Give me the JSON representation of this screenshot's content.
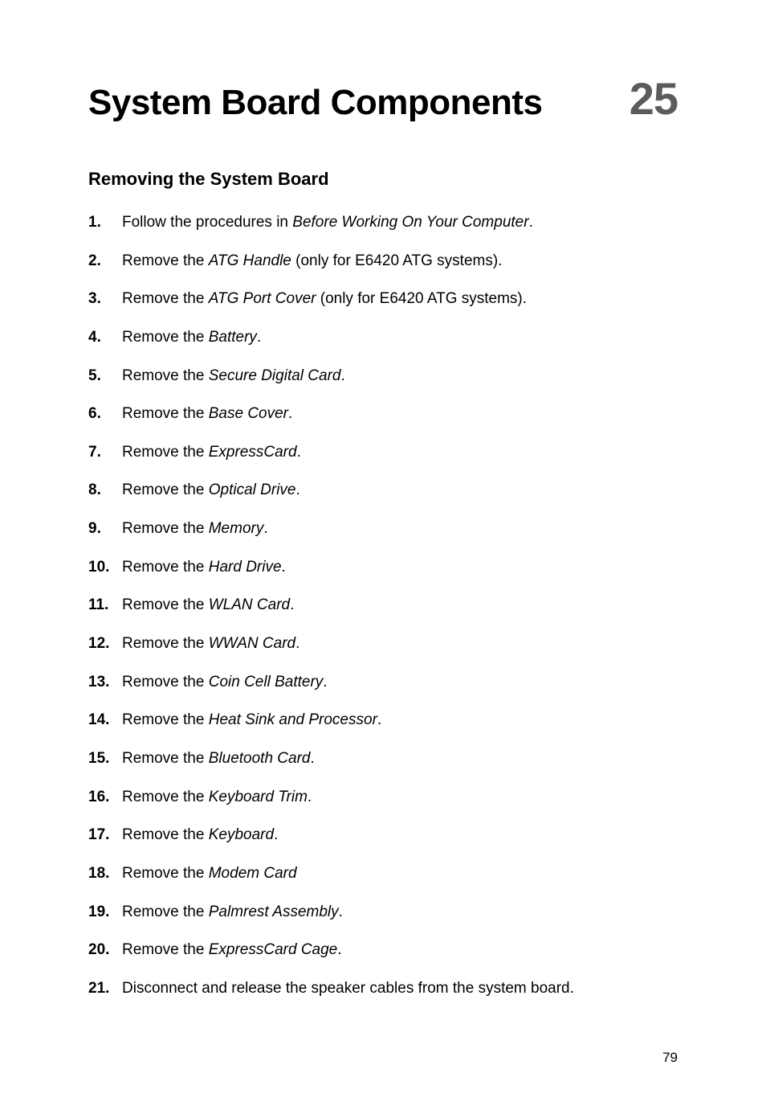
{
  "title": "System Board Components",
  "chapter_number": "25",
  "section_heading": "Removing the System Board",
  "page_number": "79",
  "steps": [
    {
      "prefix": "Follow the procedures in ",
      "italic": "Before Working On Your Computer",
      "suffix": "."
    },
    {
      "prefix": "Remove the ",
      "italic": "ATG Handle",
      "suffix": " (only for E6420 ATG systems)."
    },
    {
      "prefix": "Remove the ",
      "italic": "ATG Port Cover",
      "suffix": " (only for E6420 ATG systems)."
    },
    {
      "prefix": "Remove the ",
      "italic": "Battery",
      "suffix": "."
    },
    {
      "prefix": "Remove the ",
      "italic": "Secure Digital Card",
      "suffix": "."
    },
    {
      "prefix": "Remove the ",
      "italic": "Base Cover",
      "suffix": "."
    },
    {
      "prefix": "Remove the ",
      "italic": "ExpressCard",
      "suffix": "."
    },
    {
      "prefix": "Remove the ",
      "italic": "Optical Drive",
      "suffix": "."
    },
    {
      "prefix": "Remove the ",
      "italic": "Memory",
      "suffix": "."
    },
    {
      "prefix": "Remove the ",
      "italic": "Hard Drive",
      "suffix": "."
    },
    {
      "prefix": "Remove the ",
      "italic": "WLAN Card",
      "suffix": "."
    },
    {
      "prefix": "Remove the ",
      "italic": "WWAN Card",
      "suffix": "."
    },
    {
      "prefix": "Remove the ",
      "italic": "Coin Cell Battery",
      "suffix": "."
    },
    {
      "prefix": "Remove the ",
      "italic": "Heat Sink and Processor",
      "suffix": "."
    },
    {
      "prefix": "Remove the ",
      "italic": "Bluetooth Card",
      "suffix": "."
    },
    {
      "prefix": "Remove the ",
      "italic": "Keyboard Trim",
      "suffix": "."
    },
    {
      "prefix": "Remove the ",
      "italic": "Keyboard",
      "suffix": "."
    },
    {
      "prefix": "Remove the ",
      "italic": "Modem Card",
      "suffix": ""
    },
    {
      "prefix": "Remove the ",
      "italic": "Palmrest Assembly",
      "suffix": "."
    },
    {
      "prefix": "Remove the ",
      "italic": "ExpressCard Cage",
      "suffix": "."
    },
    {
      "prefix": "Disconnect and release the speaker cables from the system board.",
      "italic": "",
      "suffix": ""
    }
  ]
}
